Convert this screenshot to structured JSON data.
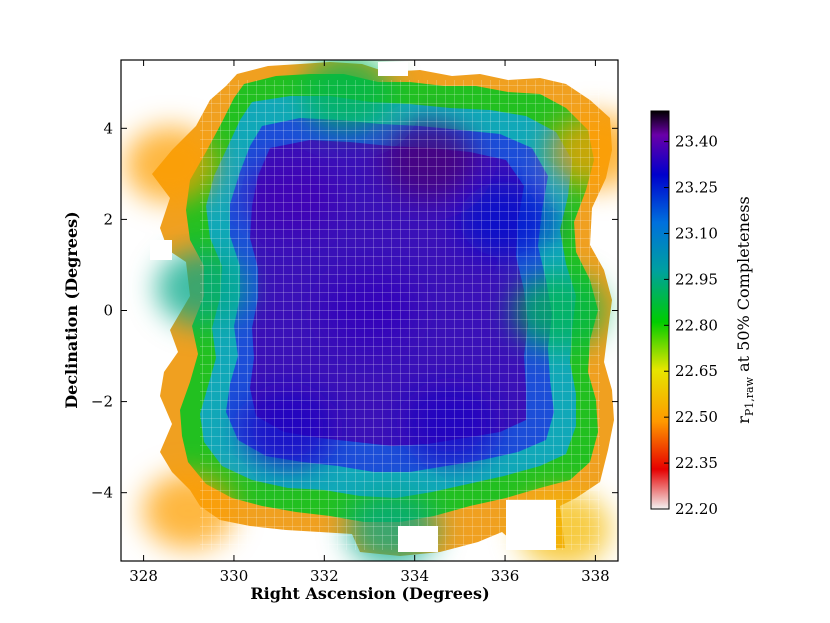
{
  "chart_data": {
    "type": "heatmap",
    "title": "",
    "xlabel": "Right Ascension (Degrees)",
    "ylabel": "Declination (Degrees)",
    "xlim": [
      327.5,
      338.5
    ],
    "ylim": [
      -5.5,
      5.5
    ],
    "xticks": [
      328,
      330,
      332,
      334,
      336,
      338
    ],
    "xtick_labels": [
      "328",
      "330",
      "332",
      "334",
      "336",
      "338"
    ],
    "yticks": [
      -4,
      -2,
      0,
      2,
      4
    ],
    "ytick_labels": [
      "−4",
      "−2",
      "0",
      "2",
      "4"
    ],
    "colorbar": {
      "label_main": "r",
      "label_sub": "P1,raw",
      "label_rest": " at 50% Completeness",
      "range": [
        22.2,
        23.5
      ],
      "ticks": [
        22.2,
        22.35,
        22.5,
        22.65,
        22.8,
        22.95,
        23.1,
        23.25,
        23.4
      ],
      "tick_labels": [
        "22.20",
        "22.35",
        "22.50",
        "22.65",
        "22.80",
        "22.95",
        "23.10",
        "23.25",
        "23.40"
      ],
      "colormap": "nipy_spectral",
      "stops": [
        "#f2f2f2",
        "#e60000",
        "#ff9900",
        "#e6e600",
        "#00cc00",
        "#00a0a0",
        "#0070dd",
        "#0000cc",
        "#6a00a8",
        "#000000"
      ]
    },
    "grid": false,
    "legend": "colorbar-right",
    "regions": [
      {
        "ra": 333.0,
        "dec": 0.0,
        "value": 23.28
      },
      {
        "ra": 331.3,
        "dec": 2.5,
        "value": 23.3
      },
      {
        "ra": 334.3,
        "dec": 3.3,
        "value": 23.4
      },
      {
        "ra": 331.2,
        "dec": -2.6,
        "value": 23.25
      },
      {
        "ra": 334.8,
        "dec": -2.5,
        "value": 23.25
      },
      {
        "ra": 336.0,
        "dec": 2.0,
        "value": 23.2
      },
      {
        "ra": 329.3,
        "dec": 0.5,
        "value": 22.9
      },
      {
        "ra": 337.2,
        "dec": 0.0,
        "value": 22.85
      },
      {
        "ra": 333.5,
        "dec": -4.8,
        "value": 22.9
      },
      {
        "ra": 332.5,
        "dec": 4.8,
        "value": 22.85
      },
      {
        "ra": 328.6,
        "dec": 3.2,
        "value": 22.5
      },
      {
        "ra": 338.0,
        "dec": 3.5,
        "value": 22.5
      },
      {
        "ra": 329.0,
        "dec": -4.4,
        "value": 22.5
      },
      {
        "ra": 337.3,
        "dec": -4.8,
        "value": 22.55
      }
    ]
  }
}
